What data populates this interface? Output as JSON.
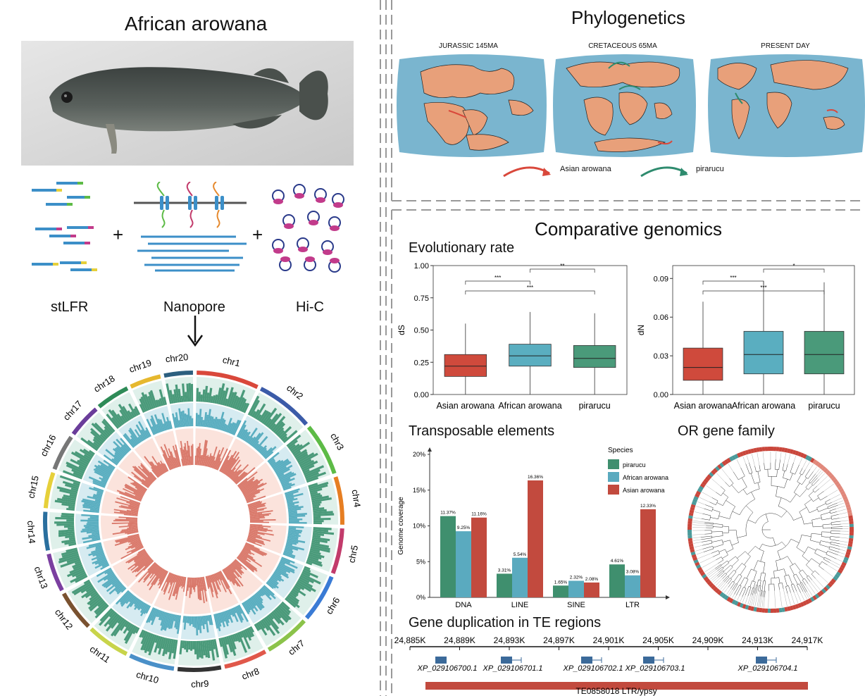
{
  "left": {
    "title": "African arowana",
    "methods": [
      "stLFR",
      "Nanopore",
      "Hi-C"
    ],
    "plus": "+",
    "chromosomes": [
      "chr1",
      "chr2",
      "chr3",
      "chr4",
      "chr5",
      "chr6",
      "chr7",
      "chr8",
      "chr9",
      "chr10",
      "chr11",
      "chr12",
      "chr13",
      "chr14",
      "chr15",
      "chr16",
      "chr17",
      "chr18",
      "chr19",
      "chr20"
    ],
    "chromosome_colors": [
      "#d9483b",
      "#3b5ba8",
      "#5dbb46",
      "#e67e22",
      "#c23b6b",
      "#3a7bd5",
      "#8bc34a",
      "#e0584a",
      "#333333",
      "#4a90c8",
      "#c8d44a",
      "#7a5230",
      "#7b3fa0",
      "#2a6f9e",
      "#e6d03a",
      "#777777",
      "#6a3d9a",
      "#2e8b57",
      "#e6b82e",
      "#2c5f7f"
    ]
  },
  "phylo": {
    "title": "Phylogenetics",
    "maps": [
      "JURASSIC 145MA",
      "CRETACEOUS 65MA",
      "PRESENT DAY"
    ],
    "legend": [
      {
        "label": "Asian arowana",
        "color": "#d9483b"
      },
      {
        "label": "pirarucu",
        "color": "#2e8b6e"
      }
    ]
  },
  "comp": {
    "title": "Comparative genomics",
    "evo_title": "Evolutionary rate",
    "te_title": "Transposable elements",
    "or_title": "OR gene family",
    "dup_title": "Gene duplication in TE regions"
  },
  "chart_data": [
    {
      "type": "box",
      "ylabel": "dS",
      "ylim": [
        0,
        1.0
      ],
      "yticks": [
        "0.00",
        "0.25",
        "0.50",
        "0.75",
        "1.00"
      ],
      "categories": [
        "Asian arowana",
        "African arowana",
        "pirarucu"
      ],
      "colors": [
        "#cf4a3c",
        "#5aaec0",
        "#4a9a7a"
      ],
      "boxes": [
        {
          "min": 0.0,
          "q1": 0.14,
          "median": 0.22,
          "q3": 0.31,
          "max": 0.55
        },
        {
          "min": 0.0,
          "q1": 0.22,
          "median": 0.3,
          "q3": 0.39,
          "max": 0.64
        },
        {
          "min": 0.0,
          "q1": 0.21,
          "median": 0.28,
          "q3": 0.38,
          "max": 0.63
        }
      ],
      "significance": [
        "***",
        "**",
        "***"
      ]
    },
    {
      "type": "box",
      "ylabel": "dN",
      "ylim": [
        0,
        0.1
      ],
      "yticks": [
        "0.00",
        "0.03",
        "0.06",
        "0.09"
      ],
      "categories": [
        "Asian arowana",
        "African arowana",
        "pirarucu"
      ],
      "colors": [
        "#cf4a3c",
        "#5aaec0",
        "#4a9a7a"
      ],
      "boxes": [
        {
          "min": 0.0,
          "q1": 0.011,
          "median": 0.021,
          "q3": 0.036,
          "max": 0.072
        },
        {
          "min": 0.0,
          "q1": 0.016,
          "median": 0.031,
          "q3": 0.049,
          "max": 0.088
        },
        {
          "min": 0.0,
          "q1": 0.016,
          "median": 0.031,
          "q3": 0.049,
          "max": 0.087
        }
      ],
      "significance": [
        "***",
        "*",
        "***"
      ]
    },
    {
      "type": "bar",
      "ylabel": "Genome coverage",
      "ylim": [
        0,
        20
      ],
      "yticks": [
        "0%",
        "5%",
        "10%",
        "15%",
        "20%"
      ],
      "categories": [
        "DNA",
        "LINE",
        "SINE",
        "LTR"
      ],
      "legend_title": "Species",
      "series": [
        {
          "name": "pirarucu",
          "color": "#3f8f6e",
          "values": [
            11.37,
            3.31,
            1.65,
            4.61
          ],
          "labels": [
            "11.37%",
            "3.31%",
            "1.65%",
            "4.61%"
          ]
        },
        {
          "name": "African arowana",
          "color": "#5aaabf",
          "values": [
            9.25,
            5.54,
            2.32,
            3.08
          ],
          "labels": [
            "9.25%",
            "5.54%",
            "2.32%",
            "3.08%"
          ]
        },
        {
          "name": "Asian arowana",
          "color": "#c24a3e",
          "values": [
            11.16,
            16.36,
            2.08,
            12.33
          ],
          "labels": [
            "11.16%",
            "16.36%",
            "2.08%",
            "12.33%"
          ]
        }
      ]
    }
  ],
  "dup": {
    "ticks": [
      "24,885K",
      "24,889K",
      "24,893K",
      "24,897K",
      "24,901K",
      "24,905K",
      "24,909K",
      "24,913K",
      "24,917K"
    ],
    "genes": [
      "XP_029106700.1",
      "XP_029106701.1",
      "XP_029106702.1",
      "XP_029106703.1",
      "XP_029106704.1"
    ],
    "te_label": "TE0858018 LTR/ypsy"
  }
}
